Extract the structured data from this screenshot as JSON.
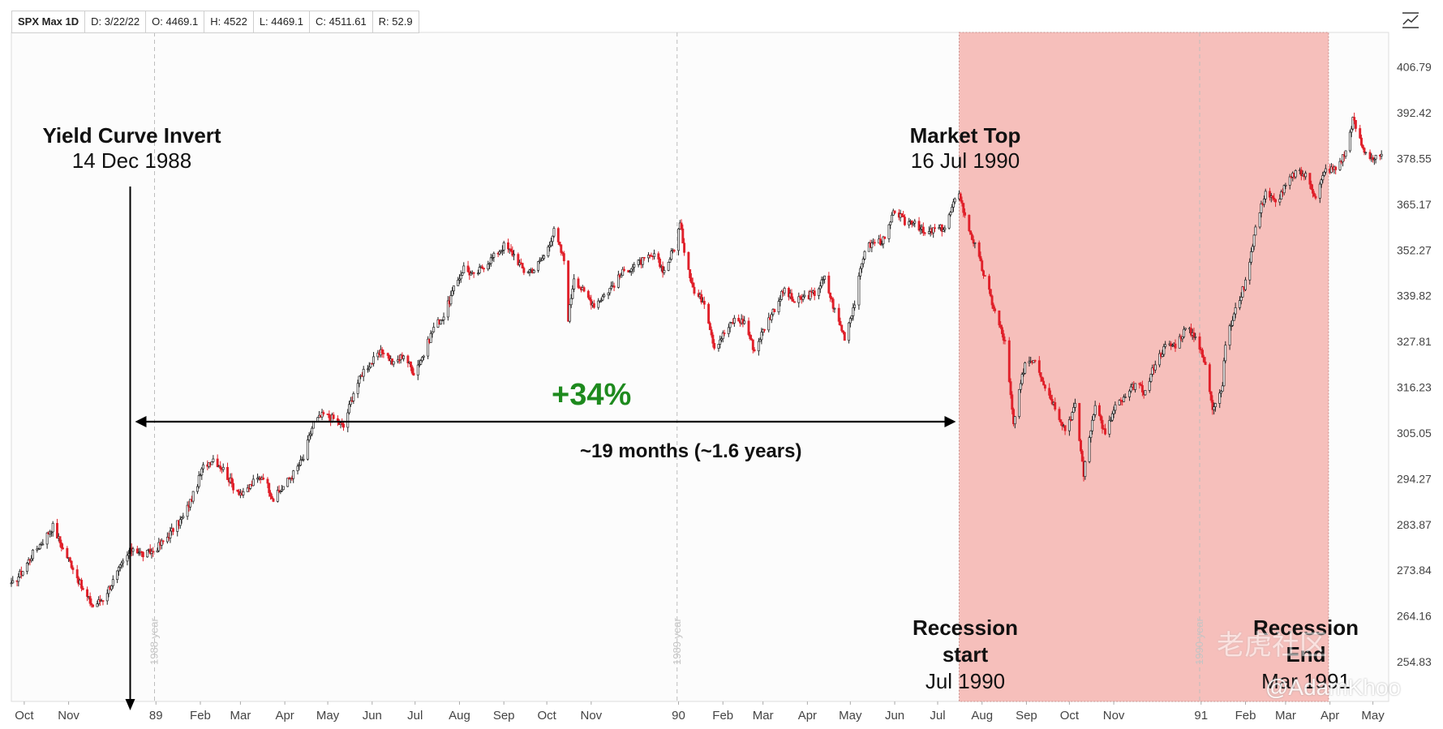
{
  "header": {
    "symbol": "SPX Max 1D",
    "date": "D: 3/22/22",
    "open": "O: 4469.1",
    "high": "H: 4522",
    "low": "L: 4469.1",
    "close": "C: 4511.61",
    "r": "R: 52.9"
  },
  "annotations": {
    "yield_title": "Yield Curve Invert",
    "yield_date": "14 Dec 1988",
    "top_title": "Market Top",
    "top_date": "16 Jul 1990",
    "rec_start_l1": "Recession",
    "rec_start_l2": "start",
    "rec_start_date": "Jul 1990",
    "rec_end_l1": "Recession",
    "rec_end_l2": "End",
    "rec_end_date": "Mar 1991",
    "pct": "+34%",
    "duration": "~19 months (~1.6 years)",
    "watermark": "@AdamKhoo",
    "watermark2": "老虎社区"
  },
  "colors": {
    "up": "#222222",
    "down": "#e0202a",
    "shade": "#f5b8b4",
    "pct": "#1e8a1e"
  },
  "chart_data": {
    "type": "candlestick",
    "ytick_labels": [
      "406.79",
      "392.42",
      "378.55",
      "365.17",
      "352.27",
      "339.82",
      "327.81",
      "316.23",
      "305.05",
      "294.27",
      "283.87",
      "273.84",
      "264.16",
      "254.83"
    ],
    "ytick_values": [
      406.79,
      392.42,
      378.55,
      365.17,
      352.27,
      339.82,
      327.81,
      316.23,
      305.05,
      294.27,
      283.87,
      273.84,
      264.16,
      254.83
    ],
    "ylim": [
      247.0,
      418.0
    ],
    "x_start": "1988-09-22",
    "x_end": "1991-05-12",
    "xticks": [
      {
        "label": "Oct",
        "date": "1988-10-01"
      },
      {
        "label": "Nov",
        "date": "1988-11-01"
      },
      {
        "label": "89",
        "date": "1989-01-01"
      },
      {
        "label": "Feb",
        "date": "1989-02-01"
      },
      {
        "label": "Mar",
        "date": "1989-03-01"
      },
      {
        "label": "Apr",
        "date": "1989-04-01"
      },
      {
        "label": "May",
        "date": "1989-05-01"
      },
      {
        "label": "Jun",
        "date": "1989-06-01"
      },
      {
        "label": "Jul",
        "date": "1989-07-01"
      },
      {
        "label": "Aug",
        "date": "1989-08-01"
      },
      {
        "label": "Sep",
        "date": "1989-09-01"
      },
      {
        "label": "Oct",
        "date": "1989-10-01"
      },
      {
        "label": "Nov",
        "date": "1989-11-01"
      },
      {
        "label": "90",
        "date": "1990-01-01"
      },
      {
        "label": "Feb",
        "date": "1990-02-01"
      },
      {
        "label": "Mar",
        "date": "1990-03-01"
      },
      {
        "label": "Apr",
        "date": "1990-04-01"
      },
      {
        "label": "May",
        "date": "1990-05-01"
      },
      {
        "label": "Jun",
        "date": "1990-06-01"
      },
      {
        "label": "Jul",
        "date": "1990-07-01"
      },
      {
        "label": "Aug",
        "date": "1990-08-01"
      },
      {
        "label": "Sep",
        "date": "1990-09-01"
      },
      {
        "label": "Oct",
        "date": "1990-10-01"
      },
      {
        "label": "Nov",
        "date": "1990-11-01"
      },
      {
        "label": "91",
        "date": "1991-01-01"
      },
      {
        "label": "Feb",
        "date": "1991-02-01"
      },
      {
        "label": "Mar",
        "date": "1991-03-01"
      },
      {
        "label": "Apr",
        "date": "1991-04-01"
      },
      {
        "label": "May",
        "date": "1991-05-01"
      }
    ],
    "year_markers": [
      {
        "label": "1988 year",
        "date": "1988-12-31"
      },
      {
        "label": "1989 year",
        "date": "1989-12-31"
      },
      {
        "label": "1990 year",
        "date": "1990-12-31"
      }
    ],
    "recession": {
      "start": "1990-07-16",
      "end": "1991-03-31"
    },
    "yield_inversion_date": "1988-12-14",
    "market_top_date": "1990-07-16",
    "series": [
      {
        "name": "SPX",
        "points": [
          [
            "1988-09-22",
            270.5
          ],
          [
            "1988-09-30",
            273.8
          ],
          [
            "1988-10-07",
            277.5
          ],
          [
            "1988-10-14",
            280.2
          ],
          [
            "1988-10-21",
            283.5
          ],
          [
            "1988-10-28",
            278.5
          ],
          [
            "1988-11-04",
            274.5
          ],
          [
            "1988-11-11",
            269.5
          ],
          [
            "1988-11-18",
            266.2
          ],
          [
            "1988-11-25",
            267.8
          ],
          [
            "1988-12-02",
            271.5
          ],
          [
            "1988-12-09",
            275.5
          ],
          [
            "1988-12-16",
            278.8
          ],
          [
            "1988-12-23",
            277.2
          ],
          [
            "1988-12-30",
            278.0
          ],
          [
            "1989-01-06",
            280.0
          ],
          [
            "1989-01-13",
            282.8
          ],
          [
            "1989-01-20",
            285.5
          ],
          [
            "1989-01-27",
            290.5
          ],
          [
            "1989-02-03",
            297.0
          ],
          [
            "1989-02-10",
            299.0
          ],
          [
            "1989-02-17",
            296.5
          ],
          [
            "1989-02-24",
            292.5
          ],
          [
            "1989-03-03",
            290.5
          ],
          [
            "1989-03-10",
            293.5
          ],
          [
            "1989-03-17",
            295.0
          ],
          [
            "1989-03-24",
            289.5
          ],
          [
            "1989-03-31",
            292.5
          ],
          [
            "1989-04-07",
            295.5
          ],
          [
            "1989-04-14",
            299.0
          ],
          [
            "1989-04-21",
            307.5
          ],
          [
            "1989-04-28",
            309.5
          ],
          [
            "1989-05-05",
            308.5
          ],
          [
            "1989-05-12",
            306.5
          ],
          [
            "1989-05-19",
            315.0
          ],
          [
            "1989-05-26",
            320.5
          ],
          [
            "1989-06-02",
            323.0
          ],
          [
            "1989-06-09",
            325.5
          ],
          [
            "1989-06-16",
            322.0
          ],
          [
            "1989-06-23",
            324.5
          ],
          [
            "1989-06-30",
            320.0
          ],
          [
            "1989-07-07",
            324.5
          ],
          [
            "1989-07-14",
            331.5
          ],
          [
            "1989-07-21",
            334.5
          ],
          [
            "1989-07-28",
            341.5
          ],
          [
            "1989-08-04",
            347.5
          ],
          [
            "1989-08-11",
            345.0
          ],
          [
            "1989-08-18",
            348.0
          ],
          [
            "1989-08-25",
            350.5
          ],
          [
            "1989-09-01",
            353.5
          ],
          [
            "1989-09-08",
            351.0
          ],
          [
            "1989-09-15",
            346.5
          ],
          [
            "1989-09-22",
            347.0
          ],
          [
            "1989-09-29",
            350.5
          ],
          [
            "1989-10-06",
            357.5
          ],
          [
            "1989-10-13",
            349.5
          ],
          [
            "1989-10-16",
            334.0
          ],
          [
            "1989-10-20",
            345.0
          ],
          [
            "1989-10-27",
            340.5
          ],
          [
            "1989-11-03",
            337.5
          ],
          [
            "1989-11-10",
            340.0
          ],
          [
            "1989-11-17",
            343.0
          ],
          [
            "1989-11-24",
            346.5
          ],
          [
            "1989-12-01",
            348.0
          ],
          [
            "1989-12-08",
            349.5
          ],
          [
            "1989-12-15",
            350.5
          ],
          [
            "1989-12-22",
            346.5
          ],
          [
            "1989-12-29",
            353.0
          ],
          [
            "1990-01-02",
            359.5
          ],
          [
            "1990-01-05",
            352.5
          ],
          [
            "1990-01-12",
            340.5
          ],
          [
            "1990-01-19",
            338.5
          ],
          [
            "1990-01-26",
            326.5
          ],
          [
            "1990-02-02",
            330.0
          ],
          [
            "1990-02-09",
            333.5
          ],
          [
            "1990-02-16",
            333.0
          ],
          [
            "1990-02-23",
            325.5
          ],
          [
            "1990-03-02",
            331.5
          ],
          [
            "1990-03-09",
            336.5
          ],
          [
            "1990-03-16",
            341.5
          ],
          [
            "1990-03-23",
            338.0
          ],
          [
            "1990-03-30",
            339.5
          ],
          [
            "1990-04-06",
            340.5
          ],
          [
            "1990-04-13",
            344.5
          ],
          [
            "1990-04-20",
            336.0
          ],
          [
            "1990-04-27",
            329.0
          ],
          [
            "1990-05-04",
            338.0
          ],
          [
            "1990-05-11",
            352.5
          ],
          [
            "1990-05-18",
            354.5
          ],
          [
            "1990-05-25",
            355.0
          ],
          [
            "1990-06-01",
            363.5
          ],
          [
            "1990-06-08",
            360.0
          ],
          [
            "1990-06-15",
            360.5
          ],
          [
            "1990-06-22",
            356.5
          ],
          [
            "1990-06-29",
            358.0
          ],
          [
            "1990-07-06",
            358.5
          ],
          [
            "1990-07-13",
            366.0
          ],
          [
            "1990-07-16",
            368.9
          ],
          [
            "1990-07-20",
            361.5
          ],
          [
            "1990-07-27",
            353.5
          ],
          [
            "1990-08-03",
            344.5
          ],
          [
            "1990-08-10",
            335.5
          ],
          [
            "1990-08-17",
            327.5
          ],
          [
            "1990-08-23",
            307.0
          ],
          [
            "1990-08-31",
            322.5
          ],
          [
            "1990-09-07",
            323.5
          ],
          [
            "1990-09-14",
            316.5
          ],
          [
            "1990-09-21",
            311.5
          ],
          [
            "1990-09-28",
            306.0
          ],
          [
            "1990-10-05",
            311.5
          ],
          [
            "1990-10-11",
            295.5
          ],
          [
            "1990-10-19",
            312.5
          ],
          [
            "1990-10-26",
            304.5
          ],
          [
            "1990-11-02",
            311.5
          ],
          [
            "1990-11-09",
            313.5
          ],
          [
            "1990-11-16",
            317.0
          ],
          [
            "1990-11-23",
            315.0
          ],
          [
            "1990-11-30",
            322.5
          ],
          [
            "1990-12-07",
            326.5
          ],
          [
            "1990-12-14",
            327.0
          ],
          [
            "1990-12-21",
            331.0
          ],
          [
            "1990-12-28",
            329.5
          ],
          [
            "1991-01-04",
            321.5
          ],
          [
            "1991-01-09",
            311.5
          ],
          [
            "1991-01-16",
            316.5
          ],
          [
            "1991-01-18",
            327.5
          ],
          [
            "1991-01-25",
            336.0
          ],
          [
            "1991-02-01",
            343.5
          ],
          [
            "1991-02-08",
            358.5
          ],
          [
            "1991-02-15",
            369.0
          ],
          [
            "1991-02-22",
            365.5
          ],
          [
            "1991-03-01",
            370.5
          ],
          [
            "1991-03-08",
            374.5
          ],
          [
            "1991-03-15",
            373.5
          ],
          [
            "1991-03-22",
            367.5
          ],
          [
            "1991-03-29",
            375.2
          ],
          [
            "1991-04-05",
            375.5
          ],
          [
            "1991-04-12",
            380.5
          ],
          [
            "1991-04-17",
            390.5
          ],
          [
            "1991-04-24",
            381.5
          ],
          [
            "1991-05-01",
            378.5
          ],
          [
            "1991-05-08",
            379.0
          ]
        ]
      }
    ]
  }
}
